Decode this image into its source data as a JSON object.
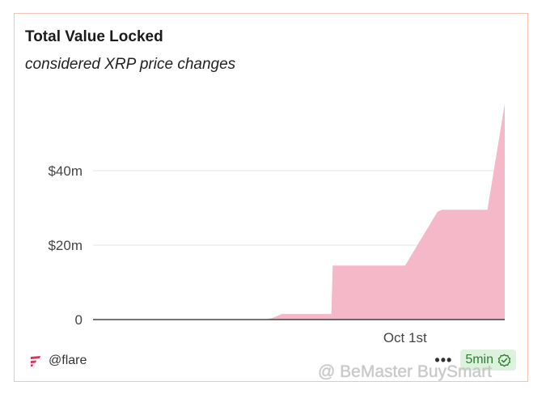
{
  "header": {
    "title": "Total Value Locked",
    "subtitle": "considered XRP price changes"
  },
  "footer": {
    "handle": "@flare",
    "menu_label": "•••",
    "badge_label": "5min"
  },
  "watermark": {
    "text": "@ BeMaster BuySmart"
  },
  "colors": {
    "area_fill": "#f5b8c8",
    "brand_logo": "#d6365f",
    "badge_bg": "#dcf2dc",
    "badge_text": "#2e7d32",
    "card_border": "#f2c4b1"
  },
  "chart_data": {
    "type": "area",
    "title": "Total Value Locked",
    "subtitle": "considered XRP price changes",
    "x": [
      0,
      10,
      20,
      30,
      40,
      41.5,
      43.5,
      50,
      55,
      55.3,
      68,
      72,
      79.5,
      80.5,
      91,
      95
    ],
    "values": [
      0,
      0,
      0,
      0,
      0,
      0.5,
      1.5,
      1.5,
      1.5,
      14.5,
      14.5,
      14.5,
      29,
      29.5,
      29.5,
      58
    ],
    "xlim": [
      0,
      95
    ],
    "ylim": [
      0,
      65
    ],
    "yticks": [
      0,
      20,
      40
    ],
    "ytick_labels": [
      "0",
      "$20m",
      "$40m"
    ],
    "xticks": [
      72
    ],
    "xtick_labels": [
      "Oct 1st"
    ],
    "xlabel": "",
    "ylabel": "",
    "grid": true
  }
}
